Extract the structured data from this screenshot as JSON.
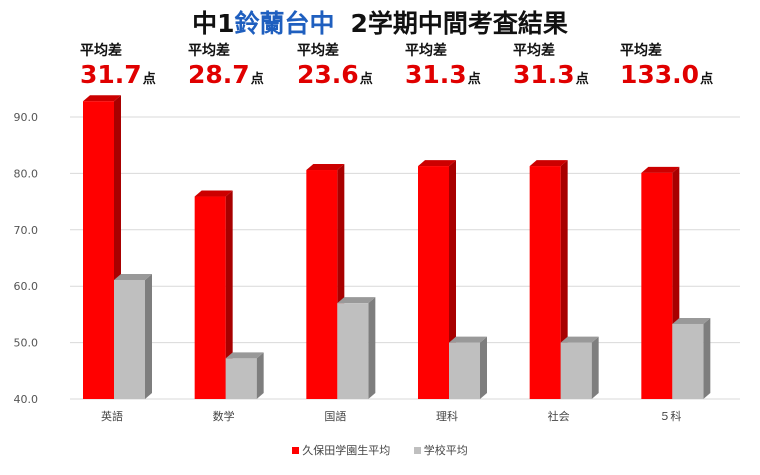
{
  "title": {
    "prefix": "中1",
    "school": "鈴蘭台中",
    "suffix": "2学期中間考査結果"
  },
  "diff_label": "平均差",
  "diff_unit": "点",
  "diffs": [
    "31.7",
    "28.7",
    "23.6",
    "31.3",
    "31.3",
    "133.0"
  ],
  "colors": {
    "series1": "#ff0000",
    "series2": "#bfbfbf",
    "title_school": "#1f5fbf",
    "diff_value": "#e00000"
  },
  "chart_data": {
    "type": "bar",
    "style": "3d-column",
    "categories": [
      "英語",
      "数学",
      "国語",
      "理科",
      "社会",
      "５科"
    ],
    "series": [
      {
        "name": "久保田学園生平均",
        "values": [
          92.8,
          75.9,
          80.6,
          81.3,
          81.3,
          80.1
        ]
      },
      {
        "name": "学校平均",
        "values": [
          61.1,
          47.2,
          57.0,
          50.0,
          50.0,
          53.3
        ]
      }
    ],
    "yaxis": {
      "min": 40,
      "max": 90,
      "ticks": [
        "40.0",
        "50.0",
        "60.0",
        "70.0",
        "80.0",
        "90.0"
      ]
    },
    "grid": true,
    "legend_position": "bottom"
  }
}
